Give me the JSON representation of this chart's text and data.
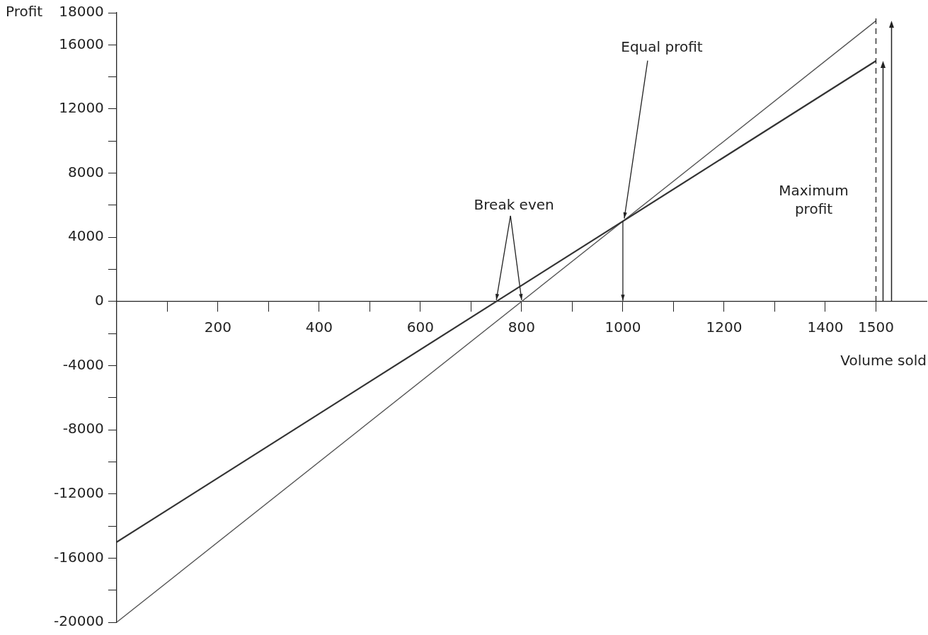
{
  "chart_data": {
    "type": "line",
    "xlabel": "Volume sold",
    "ylabel": "Profit",
    "x": [
      0,
      1500
    ],
    "series": [
      {
        "values": [
          -15000,
          15000
        ],
        "color": "#333333"
      },
      {
        "values": [
          -20000,
          17500
        ],
        "color": "#555555"
      }
    ],
    "xlim": [
      0,
      1600
    ],
    "ylim": [
      -20000,
      18000
    ],
    "xticks": [
      {
        "value": 100,
        "label": null
      },
      200,
      {
        "value": 300,
        "label": null
      },
      400,
      {
        "value": 500,
        "label": null
      },
      600,
      {
        "value": 700,
        "label": null
      },
      800,
      {
        "value": 900,
        "label": null
      },
      1000,
      {
        "value": 1100,
        "label": null
      },
      1200,
      {
        "value": 1300,
        "label": null
      },
      1400,
      1500
    ],
    "yticks": [
      -20000,
      {
        "value": -18000,
        "label": null
      },
      -16000,
      {
        "value": -14000,
        "label": null
      },
      -12000,
      {
        "value": -10000,
        "label": null
      },
      -8000,
      {
        "value": -6000,
        "label": null
      },
      -4000,
      {
        "value": -2000,
        "label": null
      },
      0,
      {
        "value": 2000,
        "label": null
      },
      4000,
      {
        "value": 6000,
        "label": null
      },
      8000,
      {
        "value": 10000,
        "label": null
      },
      12000,
      {
        "value": 14000,
        "label": null
      },
      16000,
      18000
    ],
    "ref_lines": [
      {
        "axis": "x",
        "value": 1500,
        "line_style": "dashed"
      }
    ],
    "annotations": [
      {
        "text": "Break even",
        "x": 750,
        "y": 0
      },
      {
        "text": "Equal profit",
        "x": 1000,
        "y": 5000
      },
      "Maximum profit"
    ],
    "grid": false,
    "legend": false,
    "marker": "none",
    "line_style": "solid"
  }
}
